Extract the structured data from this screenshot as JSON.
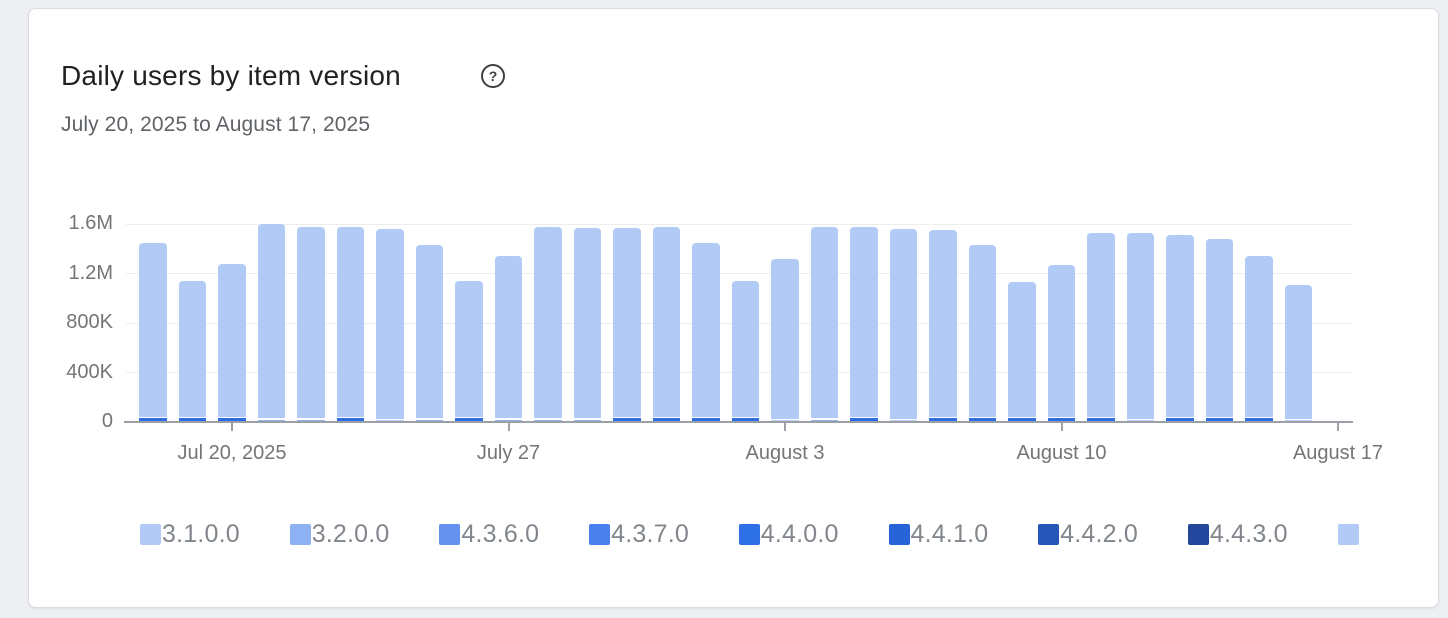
{
  "page": {
    "background_color": "#edeff2"
  },
  "card": {
    "title": "Daily users by item version",
    "date_range": "July 20, 2025 to August 17, 2025"
  },
  "icons": {
    "help": "?"
  },
  "chart_data": {
    "type": "bar",
    "stacked": true,
    "title": "Daily users by item version",
    "date_range": "July 20, 2025 to August 17, 2025",
    "grid": true,
    "legend_position": "bottom",
    "ylim": [
      0,
      1600000
    ],
    "yticks": [
      {
        "label": "1.6M",
        "value": 1600000
      },
      {
        "label": "1.2M",
        "value": 1200000
      },
      {
        "label": "800K",
        "value": 800000
      },
      {
        "label": "400K",
        "value": 400000
      },
      {
        "label": "0",
        "value": 0
      }
    ],
    "xticks": [
      {
        "label": "Jul 20, 2025",
        "day_index": 2
      },
      {
        "label": "July 27",
        "day_index": 9
      },
      {
        "label": "August 3",
        "day_index": 16
      },
      {
        "label": "August 10",
        "day_index": 23
      },
      {
        "label": "August 17",
        "day_index": 30
      }
    ],
    "colors": {
      "bar_body": "#b2caf6",
      "axis_line": "#9aa0a6",
      "gridline": "#ededed",
      "base_shades": {
        "dark": "#2d6ce3",
        "medium": "#8fb1f2",
        "pale": "#bdd1f8"
      }
    },
    "legend": [
      {
        "label": "3.1.0.0",
        "color": "#b2caf6"
      },
      {
        "label": "3.2.0.0",
        "color": "#8db1f3"
      },
      {
        "label": "4.3.6.0",
        "color": "#6591ef"
      },
      {
        "label": "4.3.7.0",
        "color": "#4a80ed"
      },
      {
        "label": "4.4.0.0",
        "color": "#2e70e6"
      },
      {
        "label": "4.4.1.0",
        "color": "#2764d8"
      },
      {
        "label": "4.4.2.0",
        "color": "#2556b8"
      },
      {
        "label": "4.4.3.0",
        "color": "#23479c"
      },
      {
        "label": "",
        "color": "#b2caf6"
      }
    ],
    "bars": [
      {
        "date": "Jul 18",
        "total": 1450000,
        "base_value": 32000,
        "base_shade": "dark"
      },
      {
        "date": "Jul 19",
        "total": 1140000,
        "base_value": 32000,
        "base_shade": "dark"
      },
      {
        "date": "Jul 20",
        "total": 1280000,
        "base_value": 32000,
        "base_shade": "dark"
      },
      {
        "date": "Jul 21",
        "total": 1600000,
        "base_value": 20000,
        "base_shade": "medium"
      },
      {
        "date": "Jul 22",
        "total": 1580000,
        "base_value": 20000,
        "base_shade": "medium"
      },
      {
        "date": "Jul 23",
        "total": 1580000,
        "base_value": 32000,
        "base_shade": "dark"
      },
      {
        "date": "Jul 24",
        "total": 1560000,
        "base_value": 15000,
        "base_shade": "pale"
      },
      {
        "date": "Jul 25",
        "total": 1430000,
        "base_value": 20000,
        "base_shade": "medium"
      },
      {
        "date": "Jul 26",
        "total": 1140000,
        "base_value": 32000,
        "base_shade": "dark"
      },
      {
        "date": "Jul 27",
        "total": 1340000,
        "base_value": 20000,
        "base_shade": "medium"
      },
      {
        "date": "Jul 28",
        "total": 1580000,
        "base_value": 20000,
        "base_shade": "medium"
      },
      {
        "date": "Jul 29",
        "total": 1570000,
        "base_value": 20000,
        "base_shade": "medium"
      },
      {
        "date": "Jul 30",
        "total": 1570000,
        "base_value": 32000,
        "base_shade": "dark"
      },
      {
        "date": "Jul 31",
        "total": 1580000,
        "base_value": 32000,
        "base_shade": "dark"
      },
      {
        "date": "Aug 1",
        "total": 1450000,
        "base_value": 32000,
        "base_shade": "dark"
      },
      {
        "date": "Aug 2",
        "total": 1140000,
        "base_value": 32000,
        "base_shade": "dark"
      },
      {
        "date": "Aug 3",
        "total": 1320000,
        "base_value": 15000,
        "base_shade": "pale"
      },
      {
        "date": "Aug 4",
        "total": 1580000,
        "base_value": 20000,
        "base_shade": "medium"
      },
      {
        "date": "Aug 5",
        "total": 1580000,
        "base_value": 32000,
        "base_shade": "dark"
      },
      {
        "date": "Aug 6",
        "total": 1560000,
        "base_value": 15000,
        "base_shade": "pale"
      },
      {
        "date": "Aug 7",
        "total": 1550000,
        "base_value": 32000,
        "base_shade": "dark"
      },
      {
        "date": "Aug 8",
        "total": 1430000,
        "base_value": 32000,
        "base_shade": "dark"
      },
      {
        "date": "Aug 9",
        "total": 1130000,
        "base_value": 32000,
        "base_shade": "dark"
      },
      {
        "date": "Aug 10",
        "total": 1270000,
        "base_value": 32000,
        "base_shade": "dark"
      },
      {
        "date": "Aug 11",
        "total": 1530000,
        "base_value": 32000,
        "base_shade": "dark"
      },
      {
        "date": "Aug 12",
        "total": 1530000,
        "base_value": 15000,
        "base_shade": "pale"
      },
      {
        "date": "Aug 13",
        "total": 1510000,
        "base_value": 32000,
        "base_shade": "dark"
      },
      {
        "date": "Aug 14",
        "total": 1480000,
        "base_value": 32000,
        "base_shade": "dark"
      },
      {
        "date": "Aug 15",
        "total": 1340000,
        "base_value": 32000,
        "base_shade": "dark"
      },
      {
        "date": "Aug 16",
        "total": 1110000,
        "base_value": 15000,
        "base_shade": "pale"
      }
    ]
  }
}
